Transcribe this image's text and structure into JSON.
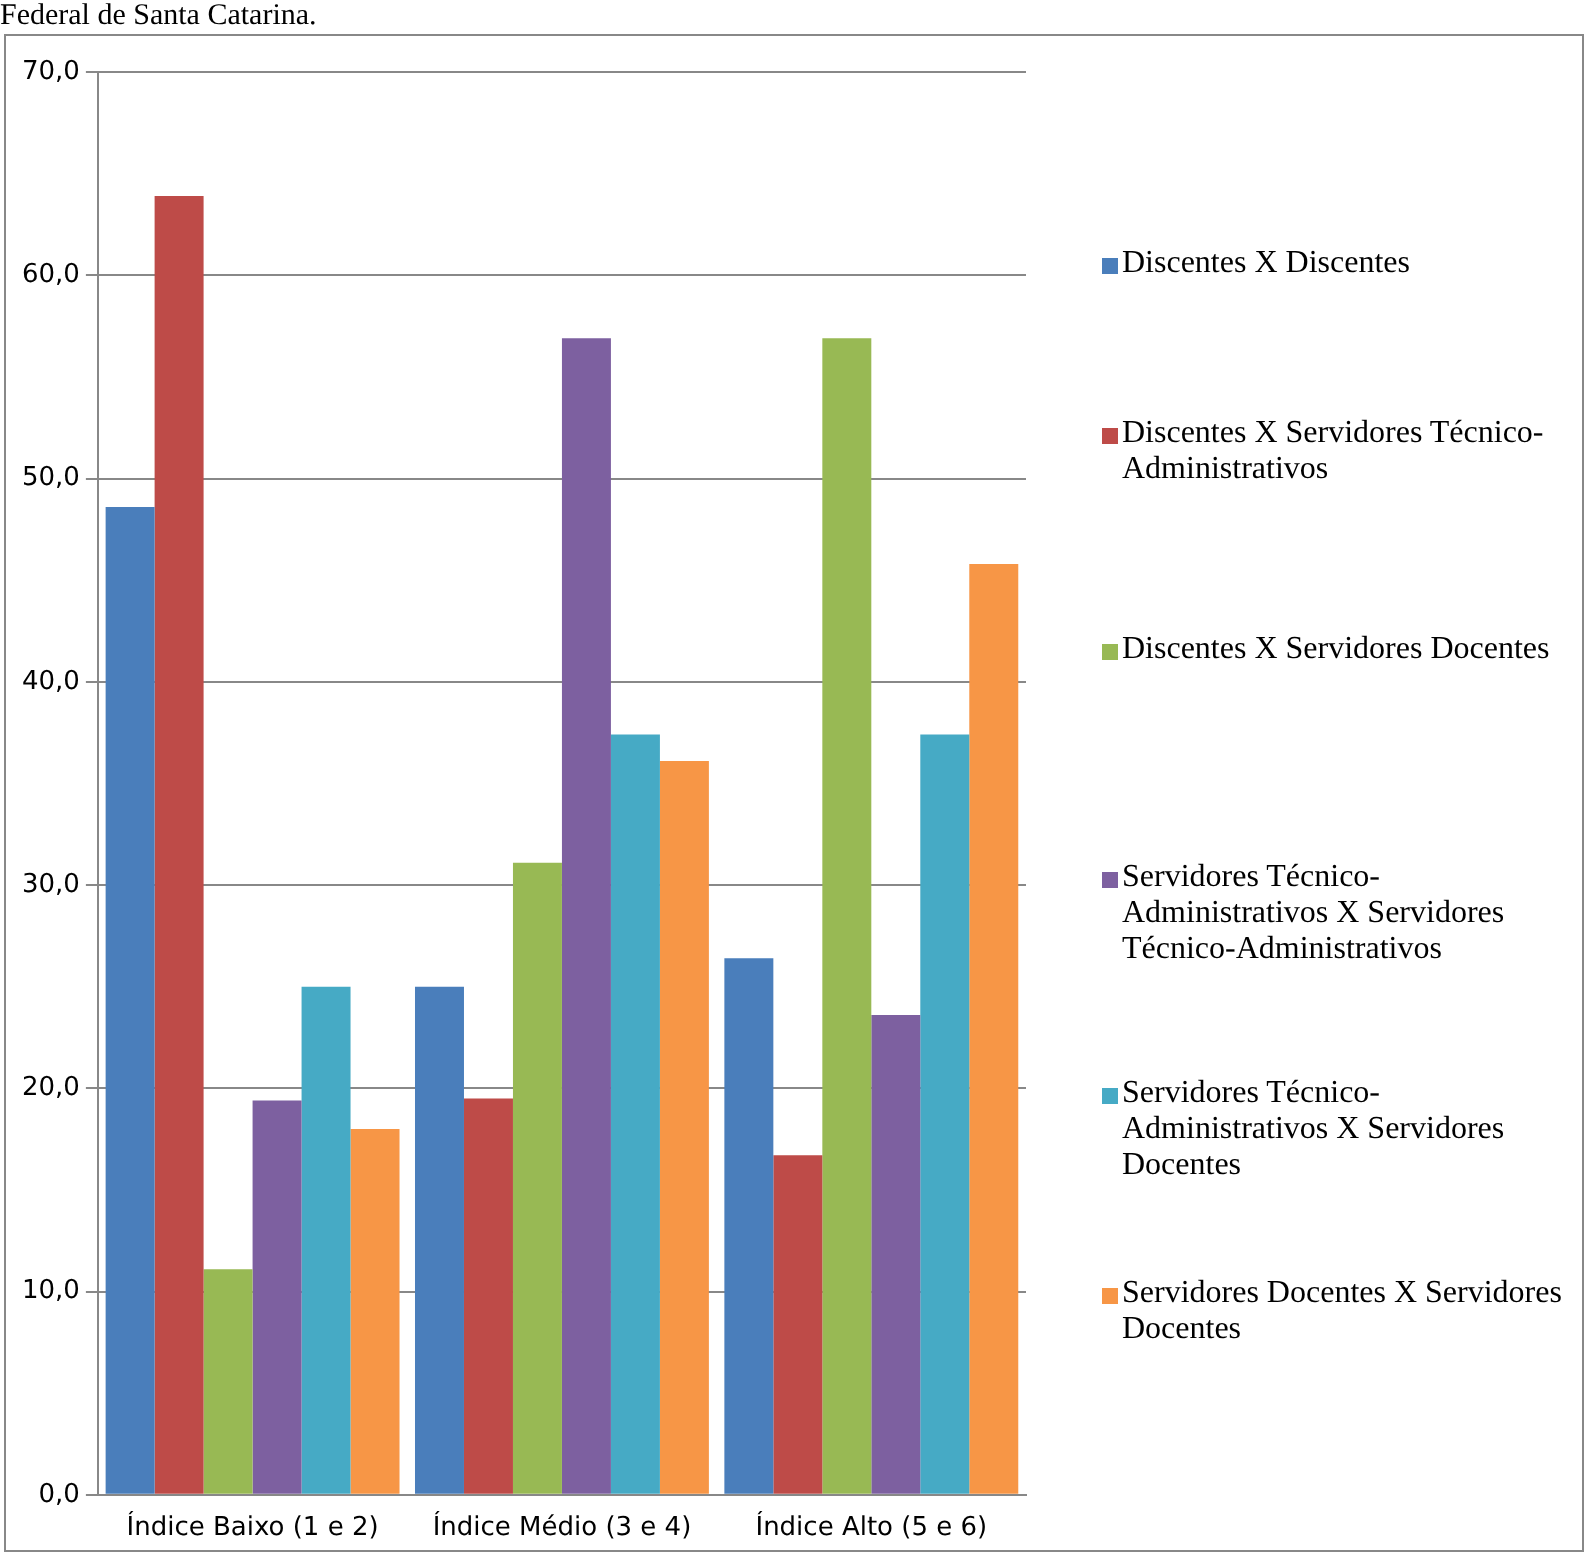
{
  "chart_data": {
    "type": "bar",
    "annotations": [
      "Federal de Santa Catarina."
    ],
    "categories": [
      "Índice Baixo (1 e 2)",
      "Índice Médio (3 e 4)",
      "Índice Alto (5 e 6)"
    ],
    "series": [
      {
        "name": "Discentes X Discentes",
        "color": "#4a7ebb",
        "values": [
          48.6,
          25.0,
          26.4
        ]
      },
      {
        "name": "Discentes X Servidores Técnico-Administrativos",
        "color": "#be4b48",
        "values": [
          63.9,
          19.5,
          16.7
        ]
      },
      {
        "name": "Discentes X Servidores Docentes",
        "color": "#98b954",
        "values": [
          11.1,
          31.1,
          56.9
        ]
      },
      {
        "name": "Servidores Técnico-Administrativos X Servidores Técnico-Administrativos",
        "color": "#7d60a0",
        "values": [
          19.4,
          56.9,
          23.6
        ]
      },
      {
        "name": "Servidores Técnico-Administrativos X Servidores Docentes",
        "color": "#46aac5",
        "values": [
          25.0,
          37.4,
          37.4
        ]
      },
      {
        "name": "Servidores Docentes X Servidores Docentes",
        "color": "#f79646",
        "values": [
          18.0,
          36.1,
          45.8
        ]
      }
    ],
    "ylim": [
      0,
      70
    ],
    "yticks": [
      {
        "value": 0,
        "label": "0,0"
      },
      {
        "value": 10,
        "label": "10,0"
      },
      {
        "value": 20,
        "label": "20,0"
      },
      {
        "value": 30,
        "label": "30,0"
      },
      {
        "value": 40,
        "label": "40,0"
      },
      {
        "value": 50,
        "label": "50,0"
      },
      {
        "value": 60,
        "label": "60,0"
      },
      {
        "value": 70,
        "label": "70,0"
      }
    ],
    "grid": "y",
    "legend": "right"
  }
}
